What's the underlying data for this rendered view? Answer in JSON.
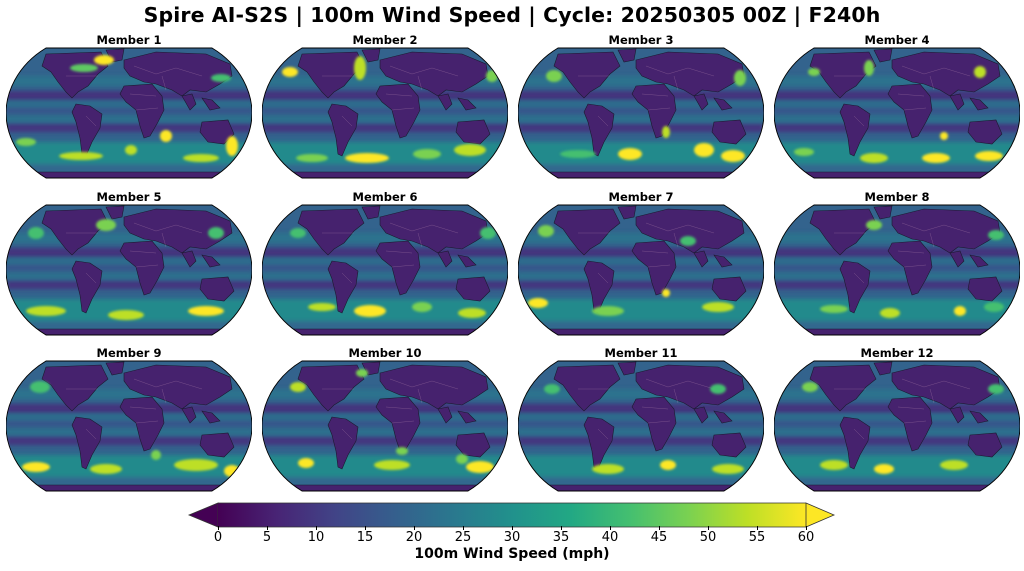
{
  "title": "Spire AI-S2S | 100m Wind Speed | Cycle: 20250305 00Z | F240h",
  "panels": [
    {
      "label": "Member 1"
    },
    {
      "label": "Member 2"
    },
    {
      "label": "Member 3"
    },
    {
      "label": "Member 4"
    },
    {
      "label": "Member 5"
    },
    {
      "label": "Member 6"
    },
    {
      "label": "Member 7"
    },
    {
      "label": "Member 8"
    },
    {
      "label": "Member 9"
    },
    {
      "label": "Member 10"
    },
    {
      "label": "Member 11"
    },
    {
      "label": "Member 12"
    }
  ],
  "colorbar": {
    "label": "100m Wind Speed (mph)",
    "ticks": [
      "0",
      "5",
      "10",
      "15",
      "20",
      "25",
      "30",
      "35",
      "40",
      "45",
      "50",
      "55",
      "60"
    ],
    "colormap": "viridis",
    "extend": "both",
    "stops": [
      "#440154",
      "#482475",
      "#414487",
      "#355f8d",
      "#2a788e",
      "#21918c",
      "#22a884",
      "#44bf70",
      "#7ad151",
      "#bddf26",
      "#fde725"
    ]
  },
  "chart_data": {
    "type": "heatmap",
    "title": "Spire AI-S2S | 100m Wind Speed | Cycle: 20250305 00Z | F240h",
    "subplots": [
      "Member 1",
      "Member 2",
      "Member 3",
      "Member 4",
      "Member 5",
      "Member 6",
      "Member 7",
      "Member 8",
      "Member 9",
      "Member 10",
      "Member 11",
      "Member 12"
    ],
    "grid": {
      "rows": 3,
      "cols": 4
    },
    "projection": "Robinson (global)",
    "variable": "100m Wind Speed",
    "units": "mph",
    "colorbar_label": "100m Wind Speed (mph)",
    "colorbar_ticks": [
      0,
      5,
      10,
      15,
      20,
      25,
      30,
      35,
      40,
      45,
      50,
      55,
      60
    ],
    "vmin": 0,
    "vmax": 60,
    "colormap": "viridis",
    "extend": "both",
    "annotations": "Strongest winds (50-60+ mph, yellow) concentrated in Southern Ocean storm track and North Atlantic/North Pacific jets; lowest (0-10 mph, purple) over continents and subtropics"
  }
}
